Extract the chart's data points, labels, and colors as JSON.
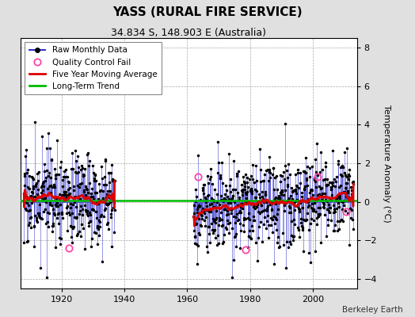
{
  "title": "YASS (RURAL FIRE SERVICE)",
  "subtitle": "34.834 S, 148.903 E (Australia)",
  "ylabel": "Temperature Anomaly (°C)",
  "watermark": "Berkeley Earth",
  "ylim": [
    -4.5,
    8.5
  ],
  "xlim": [
    1907,
    2014
  ],
  "yticks": [
    -4,
    -2,
    0,
    2,
    4,
    6,
    8
  ],
  "xticks": [
    1920,
    1940,
    1960,
    1980,
    2000
  ],
  "background_color": "#e0e0e0",
  "plot_bg_color": "#ffffff",
  "raw_line_color": "#3333cc",
  "raw_dot_color": "#000000",
  "moving_avg_color": "#dd0000",
  "trend_color": "#00bb00",
  "qc_fail_color": "#ff44aa",
  "seed": 17
}
